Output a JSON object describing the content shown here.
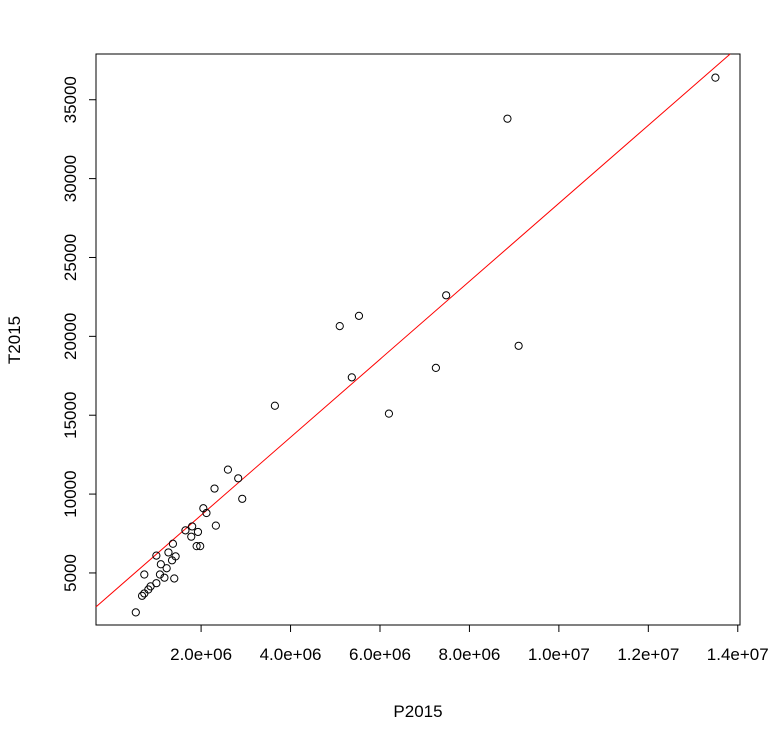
{
  "chart_data": {
    "type": "scatter",
    "title": "",
    "xlabel": "P2015",
    "ylabel": "T2015",
    "xlim": [
      -350000,
      14050000
    ],
    "ylim": [
      1700,
      37900
    ],
    "x_ticks": [
      2000000,
      4000000,
      6000000,
      8000000,
      10000000,
      12000000,
      14000000
    ],
    "x_tick_labels": [
      "2.0e+06",
      "4.0e+06",
      "6.0e+06",
      "8.0e+06",
      "1.0e+07",
      "1.2e+07",
      "1.4e+07"
    ],
    "y_ticks": [
      5000,
      10000,
      15000,
      20000,
      25000,
      30000,
      35000
    ],
    "y_tick_labels": [
      "5000",
      "10000",
      "15000",
      "20000",
      "25000",
      "30000",
      "35000"
    ],
    "grid": false,
    "point_color": "#000000",
    "line_color": "#ff0000",
    "regression_line": {
      "points": [
        [
          -350000,
          2850
        ],
        [
          13830000,
          37900
        ]
      ]
    },
    "points": [
      {
        "x": 13500000,
        "y": 36400
      },
      {
        "x": 8850000,
        "y": 33800
      },
      {
        "x": 9100000,
        "y": 19400
      },
      {
        "x": 7480000,
        "y": 22600
      },
      {
        "x": 7250000,
        "y": 18000
      },
      {
        "x": 6200000,
        "y": 15100
      },
      {
        "x": 5530000,
        "y": 21300
      },
      {
        "x": 5100000,
        "y": 20650
      },
      {
        "x": 5370000,
        "y": 17400
      },
      {
        "x": 3650000,
        "y": 15600
      },
      {
        "x": 2600000,
        "y": 11550
      },
      {
        "x": 2830000,
        "y": 11000
      },
      {
        "x": 2300000,
        "y": 10350
      },
      {
        "x": 2920000,
        "y": 9700
      },
      {
        "x": 2050000,
        "y": 9100
      },
      {
        "x": 2120000,
        "y": 8800
      },
      {
        "x": 2330000,
        "y": 8000
      },
      {
        "x": 1800000,
        "y": 7950
      },
      {
        "x": 1650000,
        "y": 7700
      },
      {
        "x": 1930000,
        "y": 7600
      },
      {
        "x": 1780000,
        "y": 7300
      },
      {
        "x": 1900000,
        "y": 6700
      },
      {
        "x": 1980000,
        "y": 6700
      },
      {
        "x": 1370000,
        "y": 6850
      },
      {
        "x": 1270000,
        "y": 6300
      },
      {
        "x": 1000000,
        "y": 6100
      },
      {
        "x": 1430000,
        "y": 6050
      },
      {
        "x": 1350000,
        "y": 5800
      },
      {
        "x": 1100000,
        "y": 5550
      },
      {
        "x": 1230000,
        "y": 5300
      },
      {
        "x": 730000,
        "y": 4900
      },
      {
        "x": 1080000,
        "y": 4900
      },
      {
        "x": 1180000,
        "y": 4700
      },
      {
        "x": 1400000,
        "y": 4650
      },
      {
        "x": 1000000,
        "y": 4350
      },
      {
        "x": 870000,
        "y": 4150
      },
      {
        "x": 820000,
        "y": 3950
      },
      {
        "x": 730000,
        "y": 3700
      },
      {
        "x": 680000,
        "y": 3550
      },
      {
        "x": 540000,
        "y": 2500
      }
    ]
  }
}
